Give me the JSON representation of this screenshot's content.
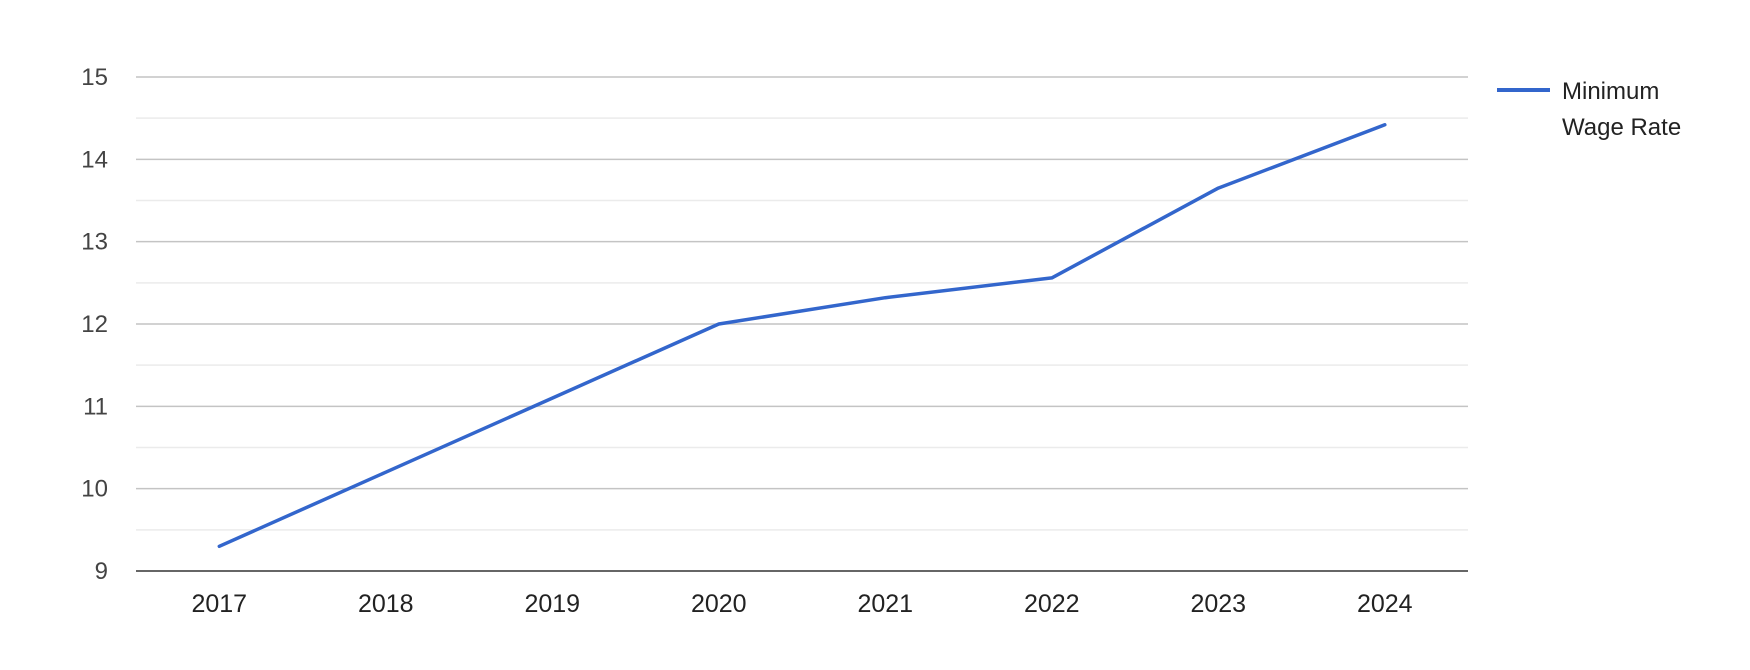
{
  "chart_data": {
    "type": "line",
    "title": "",
    "xlabel": "",
    "ylabel": "",
    "categories": [
      "2017",
      "2018",
      "2019",
      "2020",
      "2021",
      "2022",
      "2023",
      "2024"
    ],
    "series": [
      {
        "name": "Minimum Wage Rate",
        "color": "#3366cc",
        "values": [
          9.3,
          10.2,
          11.1,
          12.0,
          12.32,
          12.56,
          13.65,
          14.42
        ]
      }
    ],
    "ylim": [
      9,
      15
    ],
    "yticks": [
      9,
      10,
      11,
      12,
      13,
      14,
      15
    ],
    "grid": true,
    "minor_grid": true,
    "legend_position": "right"
  },
  "legend": {
    "lines": [
      "Minimum",
      "Wage Rate"
    ]
  }
}
